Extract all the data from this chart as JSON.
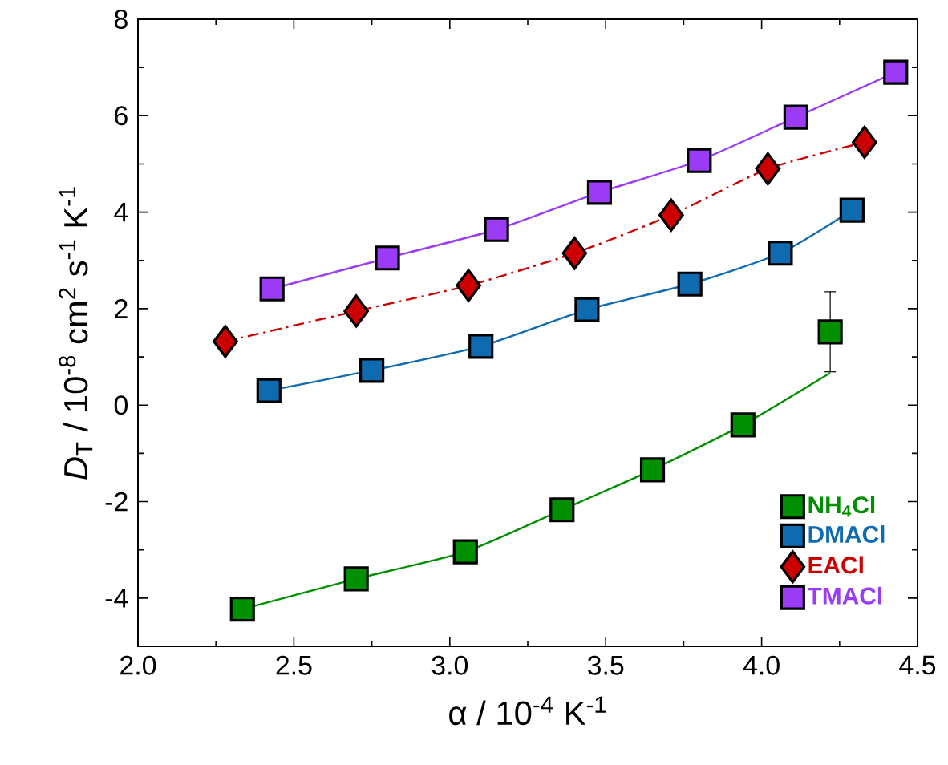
{
  "chart_data": {
    "type": "scatter",
    "xlabel": "α / 10$^{-4}$ K$^{-1}$",
    "ylabel": "*D*$_{T}$ / 10$^{-8}$ cm$^{2}$ s$^{-1}$ K$^{-1}$",
    "xlim": [
      2.0,
      4.5
    ],
    "ylim": [
      -5,
      8
    ],
    "xticks": [
      {
        "value": 2.0,
        "label": "2.0"
      },
      {
        "value": 2.5,
        "label": "2.5"
      },
      {
        "value": 3.0,
        "label": "3.0"
      },
      {
        "value": 3.5,
        "label": "3.5"
      },
      {
        "value": 4.0,
        "label": "4.0"
      },
      {
        "value": 4.5,
        "label": "4.5"
      }
    ],
    "yticks": [
      -4,
      -2,
      0,
      2,
      4,
      6,
      8
    ],
    "legend": "bottom right",
    "grid": false,
    "series": [
      {
        "name": "NH$_{4}$Cl",
        "marker": "square",
        "color": "#008f00",
        "x": [
          2.335,
          2.7,
          3.05,
          3.36,
          3.65,
          3.94,
          4.22
        ],
        "values": [
          -4.23,
          -3.6,
          -3.04,
          -2.17,
          -1.34,
          -0.41,
          1.52
        ],
        "errors": [
          0.15,
          0.15,
          0.15,
          0.15,
          0.15,
          0.15,
          [
            0.69,
            2.35
          ]
        ]
      },
      {
        "name": "DMACl",
        "marker": "square",
        "color": "#0f6bb0",
        "x": [
          2.42,
          2.75,
          3.1,
          3.44,
          3.77,
          4.06,
          4.29
        ],
        "values": [
          0.3,
          0.72,
          1.22,
          1.98,
          2.51,
          3.15,
          4.04
        ],
        "errors": [
          0.15,
          0.15,
          0.15,
          0.15,
          0.15,
          0.15,
          0.15
        ]
      },
      {
        "name": "EACl",
        "marker": "diamond",
        "color": "#cc0000",
        "x": [
          2.28,
          2.7,
          3.06,
          3.4,
          3.71,
          4.02,
          4.33
        ],
        "values": [
          1.32,
          1.95,
          2.48,
          3.15,
          3.94,
          4.9,
          5.45
        ],
        "errors": [
          0.15,
          0.15,
          0.15,
          0.15,
          0.15,
          0.15,
          0.15
        ]
      },
      {
        "name": "TMACl",
        "marker": "square",
        "color": "#9b3bf5",
        "x": [
          2.43,
          2.8,
          3.15,
          3.48,
          3.8,
          4.11,
          4.43
        ],
        "values": [
          2.41,
          3.05,
          3.64,
          4.41,
          5.07,
          5.97,
          6.9
        ],
        "errors": [
          0.15,
          0.15,
          0.15,
          0.15,
          0.15,
          0.15,
          0.15
        ]
      },
      {
        "type": "line",
        "marker": "none",
        "line_style": "solid",
        "color": "#008f00",
        "x": [
          2.335,
          2.7,
          3.05,
          3.36,
          3.65,
          3.94,
          4.22
        ],
        "values": [
          -4.23,
          -3.6,
          -3.04,
          -2.17,
          -1.34,
          -0.41,
          0.67
        ]
      },
      {
        "type": "line",
        "marker": "none",
        "line_style": "solid",
        "color": "#0f6bb0",
        "x": [
          2.42,
          2.75,
          3.1,
          3.44,
          3.77,
          4.06,
          4.29
        ],
        "values": [
          0.3,
          0.72,
          1.22,
          1.98,
          2.51,
          3.15,
          4.04
        ]
      },
      {
        "type": "line",
        "marker": "none",
        "line_style": "dashdot",
        "color": "#cc0000",
        "x": [
          2.28,
          2.7,
          3.06,
          3.4,
          3.71,
          4.02,
          4.33
        ],
        "values": [
          1.32,
          1.95,
          2.48,
          3.15,
          3.94,
          4.9,
          5.45
        ]
      },
      {
        "type": "line",
        "marker": "none",
        "line_style": "solid",
        "color": "#9b3bf5",
        "x": [
          2.43,
          2.8,
          3.15,
          3.48,
          3.8,
          4.11,
          4.43
        ],
        "values": [
          2.41,
          3.05,
          3.64,
          4.41,
          5.07,
          5.97,
          6.9
        ]
      }
    ]
  }
}
